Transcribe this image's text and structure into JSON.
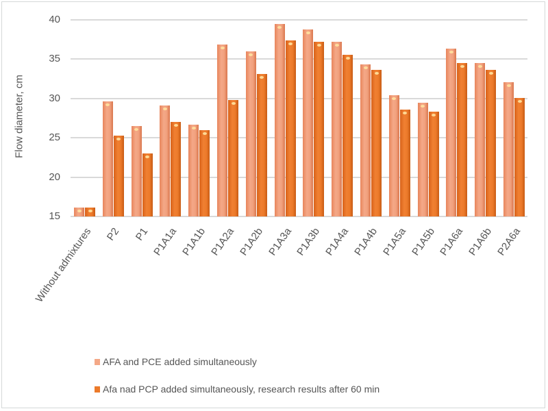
{
  "chart_data": {
    "type": "bar",
    "title": "",
    "xlabel": "",
    "ylabel": "Flow diameter, cm",
    "ylim": [
      15,
      40
    ],
    "yticks": [
      15,
      20,
      25,
      30,
      35,
      40
    ],
    "grid": true,
    "legend_position": "bottom",
    "categories": [
      "Without admixtures",
      "P2",
      "P1",
      "P1A1a",
      "P1A1b",
      "P1A2a",
      "P1A2b",
      "P1A3a",
      "P1A3b",
      "P1A4a",
      "P1A4b",
      "P1A5a",
      "P1A5b",
      "P1A6a",
      "P1A6b",
      "P2A6a"
    ],
    "series": [
      {
        "name": "AFA and PCE added simultaneously",
        "color": "#f4a887",
        "values": [
          16.1,
          29.6,
          26.5,
          29.1,
          26.7,
          36.9,
          36.0,
          39.5,
          38.8,
          37.2,
          34.3,
          30.4,
          29.5,
          36.3,
          34.5,
          32.1
        ]
      },
      {
        "name": "Afa nad PCP added simultaneously, research results after 60 min",
        "color": "#ec7a2a",
        "values": [
          16.1,
          25.3,
          23.0,
          27.0,
          26.0,
          29.8,
          33.1,
          37.4,
          37.2,
          35.6,
          33.6,
          28.6,
          28.3,
          34.5,
          33.6,
          30.1
        ]
      }
    ]
  },
  "labels": {
    "ylabel": "Flow diameter, cm",
    "yticks": [
      "40",
      "35",
      "30",
      "25",
      "20",
      "15"
    ],
    "xticks": [
      "Without admixtures",
      "P2",
      "P1",
      "P1A1a",
      "P1A1b",
      "P1A2a",
      "P1A2b",
      "P1A3a",
      "P1A3b",
      "P1A4a",
      "P1A4b",
      "P1A5a",
      "P1A5b",
      "P1A6a",
      "P1A6b",
      "P2A6a"
    ],
    "legend": [
      "AFA and PCE added simultaneously",
      "Afa nad PCP added simultaneously, research results after 60 min"
    ]
  }
}
